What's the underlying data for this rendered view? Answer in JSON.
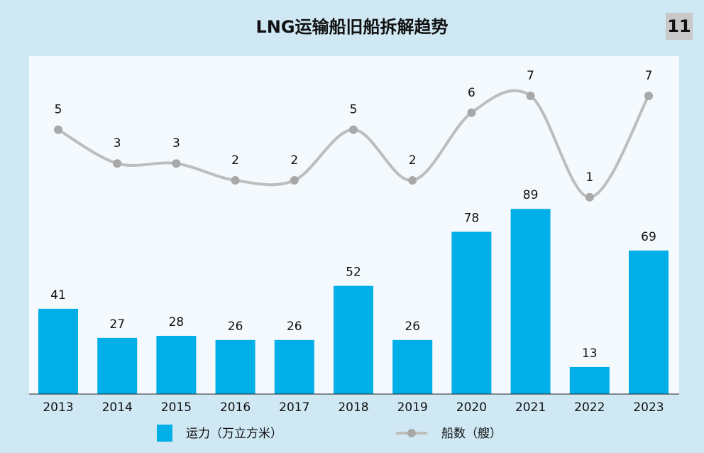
{
  "header": {
    "title": "LNG运输船旧船拆解趋势",
    "page_number": "11"
  },
  "colors": {
    "background": "#cfe8f4",
    "plot_background": "#f3f9fc",
    "bar": "#00aee8",
    "line": "#bdbdbd",
    "marker": "#a8a8a8",
    "text": "#111111"
  },
  "chart_data": {
    "type": "bar",
    "categories": [
      "2013",
      "2014",
      "2015",
      "2016",
      "2017",
      "2018",
      "2019",
      "2020",
      "2021",
      "2022",
      "2023"
    ],
    "series": [
      {
        "name": "运力（万立方米）",
        "type": "bar",
        "values": [
          41,
          27,
          28,
          26,
          26,
          52,
          26,
          78,
          89,
          13,
          69
        ]
      },
      {
        "name": "船数（艘）",
        "type": "line",
        "smooth": true,
        "values": [
          5,
          3,
          3,
          2,
          2,
          5,
          2,
          6,
          7,
          1,
          7
        ]
      }
    ],
    "legend_position": "bottom",
    "grid": false
  }
}
